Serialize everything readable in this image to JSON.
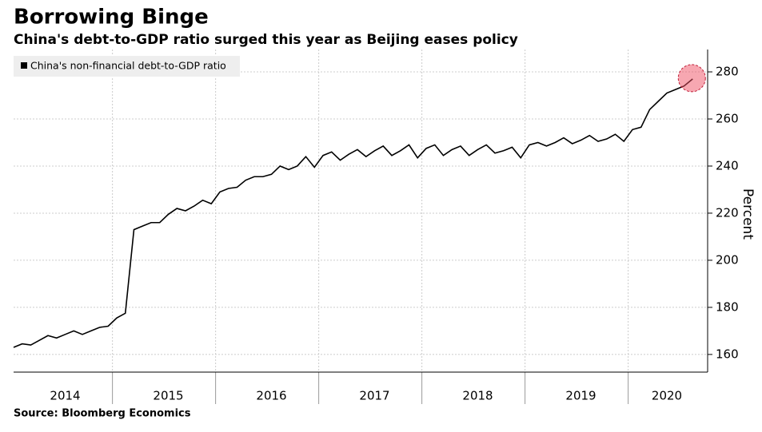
{
  "chart_data": {
    "type": "line",
    "title": "Borrowing Binge",
    "subtitle": "China's debt-to-GDP ratio surged this year as Beijing eases policy",
    "source": "Source: Bloomberg Economics",
    "y_label": "Percent",
    "categories": [
      null,
      null,
      null,
      null,
      null,
      null,
      "2014",
      null,
      null,
      null,
      null,
      null,
      null,
      null,
      null,
      null,
      null,
      null,
      "2015",
      null,
      null,
      null,
      null,
      null,
      null,
      null,
      null,
      null,
      null,
      null,
      "2016",
      null,
      null,
      null,
      null,
      null,
      null,
      null,
      null,
      null,
      null,
      null,
      "2017",
      null,
      null,
      null,
      null,
      null,
      null,
      null,
      null,
      null,
      null,
      null,
      "2018",
      null,
      null,
      null,
      null,
      null,
      null,
      null,
      null,
      null,
      null,
      null,
      "2019",
      null,
      null,
      null,
      null,
      null,
      null,
      null,
      null,
      null,
      "2020",
      null,
      null,
      null
    ],
    "series": [
      {
        "name": "China's non-financial debt-to-GDP ratio",
        "color": "#000000",
        "values": [
          163,
          164.5,
          164,
          166,
          168,
          167,
          168.5,
          170,
          168.5,
          170,
          171.5,
          172,
          175.5,
          177.5,
          213,
          214.5,
          216,
          216,
          219.5,
          222,
          221,
          223,
          225.5,
          224,
          229,
          230.5,
          231,
          234,
          235.5,
          235.5,
          236.5,
          240,
          238.5,
          240,
          244,
          239.5,
          244.5,
          246,
          242.5,
          245,
          247,
          244,
          246.5,
          248.5,
          244.5,
          246.5,
          249,
          243.5,
          247.5,
          249,
          244.5,
          247,
          248.5,
          244.5,
          247,
          249,
          245.5,
          246.5,
          248,
          243.5,
          249,
          250,
          248.5,
          250,
          252,
          249.5,
          251,
          253,
          250.5,
          251.5,
          253.5,
          250.5,
          255.5,
          256.5,
          264,
          267.5,
          271,
          272.5,
          274,
          277
        ]
      }
    ],
    "ylim": [
      152.5,
      289.5
    ],
    "yticks": [
      160,
      180,
      200,
      220,
      240,
      260,
      280
    ],
    "grid": true,
    "legend": "top-left"
  }
}
